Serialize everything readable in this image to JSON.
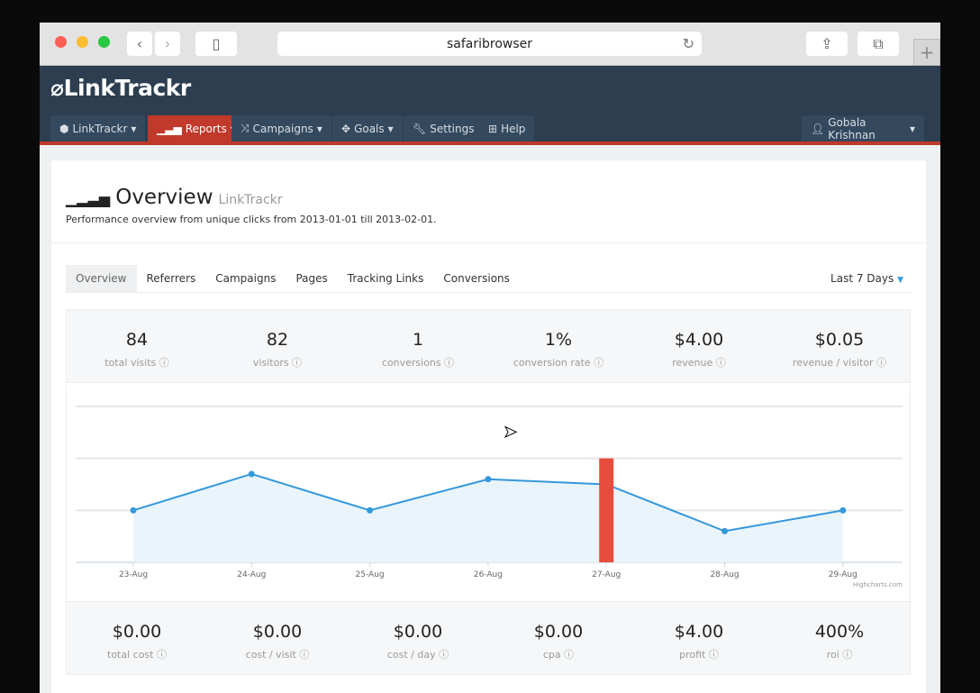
{
  "browser": {
    "url": "safaribrowser"
  },
  "header": {
    "logo": "LinkTrackr",
    "nav": [
      {
        "label": "LinkTrackr",
        "icon": "cube-icon"
      },
      {
        "label": "Reports",
        "icon": "signal-icon",
        "active": true
      },
      {
        "label": "Campaigns",
        "icon": "shuffle-icon"
      },
      {
        "label": "Goals",
        "icon": "crosshair-icon"
      },
      {
        "label": "Settings",
        "icon": "wrench-icon"
      },
      {
        "label": "Help",
        "icon": "medkit-icon"
      }
    ],
    "user": "Gobala Krishnan",
    "accent": "#c0392b",
    "bg": "#2c3e50"
  },
  "page": {
    "title": "Overview",
    "title_small": "LinkTrackr",
    "subtitle": "Performance overview from unique clicks from 2013-01-01 till 2013-02-01.",
    "tabs": [
      "Overview",
      "Referrers",
      "Campaigns",
      "Pages",
      "Tracking Links",
      "Conversions"
    ],
    "range": "Last 7 Days"
  },
  "stats_top": [
    {
      "value": "84",
      "label": "total visits"
    },
    {
      "value": "82",
      "label": "visitors"
    },
    {
      "value": "1",
      "label": "conversions"
    },
    {
      "value": "1%",
      "label": "conversion rate"
    },
    {
      "value": "$4.00",
      "label": "revenue"
    },
    {
      "value": "$0.05",
      "label": "revenue / visitor"
    }
  ],
  "stats_bottom": [
    {
      "value": "$0.00",
      "label": "total cost"
    },
    {
      "value": "$0.00",
      "label": "cost / visit"
    },
    {
      "value": "$0.00",
      "label": "cost / day"
    },
    {
      "value": "$0.00",
      "label": "cpa"
    },
    {
      "value": "$4.00",
      "label": "profit"
    },
    {
      "value": "400%",
      "label": "roi"
    }
  ],
  "chart_data": {
    "type": "area",
    "categories": [
      "23-Aug",
      "24-Aug",
      "25-Aug",
      "26-Aug",
      "27-Aug",
      "28-Aug",
      "29-Aug"
    ],
    "series": [
      {
        "type": "area",
        "values": [
          1,
          1.7,
          1,
          1.6,
          1.5,
          0.6,
          1
        ],
        "color": "#3498db"
      },
      {
        "type": "bar",
        "values": [
          0,
          0,
          0,
          0,
          2,
          0,
          0
        ],
        "color": "#e74c3c"
      }
    ],
    "ylim": [
      0,
      3
    ],
    "grid": true,
    "credit": "Highcharts.com"
  }
}
